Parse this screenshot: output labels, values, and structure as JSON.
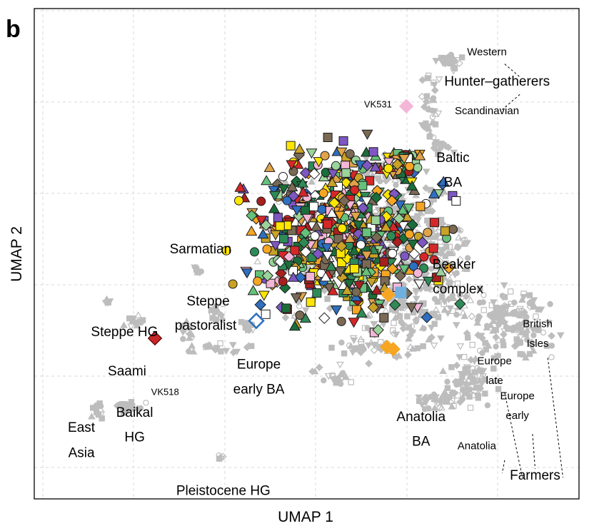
{
  "panel_letter": "b",
  "chart_data": {
    "type": "scatter",
    "title": "",
    "xlabel": "UMAP 1",
    "ylabel": "UMAP 2",
    "xlim": [
      0,
      100
    ],
    "ylim": [
      0,
      100
    ],
    "grid": true,
    "legend": "none",
    "background_color": "#bdbdbd",
    "highlight_colors": [
      "#2e8b57",
      "#1b6e3a",
      "#66c27a",
      "#9bd39b",
      "#c9a227",
      "#d62728",
      "#a81f1f",
      "#2e6fbf",
      "#7e57c2",
      "#7a6a55",
      "#ffe600",
      "#e0a34a",
      "#f6a623",
      "#f4b6d6",
      "#ffffff"
    ],
    "background_clusters": [
      {
        "x": 78.2,
        "y": 94.0,
        "rx": 2.0,
        "ry": 1.6,
        "n": 30
      },
      {
        "x": 74.4,
        "y": 83.0,
        "rx": 1.4,
        "ry": 6.0,
        "n": 35
      },
      {
        "x": 76.0,
        "y": 74.0,
        "rx": 1.8,
        "ry": 1.8,
        "n": 16
      },
      {
        "x": 64.5,
        "y": 69.5,
        "rx": 4.2,
        "ry": 2.2,
        "n": 45
      },
      {
        "x": 68.0,
        "y": 55.0,
        "rx": 7.0,
        "ry": 10.0,
        "n": 240
      },
      {
        "x": 72.0,
        "y": 38.0,
        "rx": 8.0,
        "ry": 7.0,
        "n": 160
      },
      {
        "x": 78.0,
        "y": 50.0,
        "rx": 4.0,
        "ry": 6.0,
        "n": 55
      },
      {
        "x": 90.0,
        "y": 34.0,
        "rx": 7.0,
        "ry": 6.0,
        "n": 150
      },
      {
        "x": 82.5,
        "y": 21.0,
        "rx": 4.0,
        "ry": 4.5,
        "n": 70
      },
      {
        "x": 78.0,
        "y": 16.5,
        "rx": 5.0,
        "ry": 2.0,
        "n": 45
      },
      {
        "x": 62.5,
        "y": 29.0,
        "rx": 6.0,
        "ry": 3.0,
        "n": 40
      },
      {
        "x": 56.0,
        "y": 22.0,
        "rx": 3.0,
        "ry": 2.0,
        "n": 20
      },
      {
        "x": 32.0,
        "y": 36.0,
        "rx": 2.0,
        "ry": 2.0,
        "n": 15
      },
      {
        "x": 28.5,
        "y": 46.0,
        "rx": 1.0,
        "ry": 1.0,
        "n": 8
      },
      {
        "x": 26.0,
        "y": 31.5,
        "rx": 1.0,
        "ry": 1.8,
        "n": 10
      },
      {
        "x": 38.0,
        "y": 33.0,
        "rx": 1.5,
        "ry": 1.5,
        "n": 10
      },
      {
        "x": 32.0,
        "y": 28.0,
        "rx": 6.0,
        "ry": 1.2,
        "n": 20
      },
      {
        "x": 16.5,
        "y": 34.5,
        "rx": 2.0,
        "ry": 1.0,
        "n": 12
      },
      {
        "x": 11.0,
        "y": 39.0,
        "rx": 1.0,
        "ry": 0.8,
        "n": 6
      },
      {
        "x": 14.5,
        "y": 14.5,
        "rx": 2.5,
        "ry": 1.0,
        "n": 22
      },
      {
        "x": 8.5,
        "y": 14.0,
        "rx": 1.2,
        "ry": 1.8,
        "n": 14
      },
      {
        "x": 33.0,
        "y": 3.0,
        "rx": 0.6,
        "ry": 0.5,
        "n": 5
      },
      {
        "x": 50.0,
        "y": 52.0,
        "rx": 6.0,
        "ry": 14.0,
        "n": 60
      }
    ],
    "highlight_clusters": [
      {
        "x": 57.0,
        "y": 55.0,
        "rx": 16.0,
        "ry": 17.0,
        "n": 640
      },
      {
        "x": 68.0,
        "y": 71.0,
        "rx": 3.5,
        "ry": 2.2,
        "n": 50
      }
    ],
    "special_points": [
      {
        "label": "VK531",
        "x": 69.6,
        "y": 83.8,
        "color": "#f4b6d6",
        "shape": "diamond"
      },
      {
        "label": "VK518",
        "x": 20.0,
        "y": 30.5,
        "color": "#c62828",
        "shape": "diamond"
      },
      {
        "label": "",
        "x": 66.0,
        "y": 40.5,
        "color": "#f6a623",
        "shape": "diamond"
      },
      {
        "label": "",
        "x": 65.8,
        "y": 28.5,
        "color": "#f6a623",
        "shape": "diamond"
      },
      {
        "label": "",
        "x": 67.0,
        "y": 28.0,
        "color": "#f6a623",
        "shape": "diamond"
      },
      {
        "label": "",
        "x": 68.5,
        "y": 41.0,
        "color": "#6fb0e0",
        "shape": "square"
      },
      {
        "label": "",
        "x": 40.0,
        "y": 34.5,
        "color": "#2e6fbf",
        "shape": "diamond-open"
      }
    ],
    "annotations": [
      {
        "text": "Western",
        "x": 85.5,
        "y": 95.5,
        "size": "s"
      },
      {
        "text": "Hunter–gatherers",
        "x": 87.5,
        "y": 88.5,
        "size": "l"
      },
      {
        "text": "Scandinavian",
        "x": 85.5,
        "y": 82.0,
        "size": "s"
      },
      {
        "text": "VK531",
        "x": 64.0,
        "y": 83.5,
        "size": "xs"
      },
      {
        "text": "Baltic",
        "x": 78.8,
        "y": 71.0,
        "size": "l"
      },
      {
        "text": "BA",
        "x": 78.8,
        "y": 65.3,
        "size": "l"
      },
      {
        "text": "Sarmatian",
        "x": 29.0,
        "y": 50.0,
        "size": "l"
      },
      {
        "text": "Beaker",
        "x": 79.0,
        "y": 46.5,
        "size": "l"
      },
      {
        "text": "complex",
        "x": 79.8,
        "y": 40.8,
        "size": "l"
      },
      {
        "text": "Steppe",
        "x": 30.5,
        "y": 38.0,
        "size": "l"
      },
      {
        "text": "pastoralist",
        "x": 30.0,
        "y": 32.5,
        "size": "l"
      },
      {
        "text": "Steppe HG",
        "x": 14.0,
        "y": 31.0,
        "size": "l"
      },
      {
        "text": "Saami",
        "x": 14.5,
        "y": 22.0,
        "size": "l"
      },
      {
        "text": "VK518",
        "x": 22.0,
        "y": 17.5,
        "size": "xs"
      },
      {
        "text": "Europe",
        "x": 40.5,
        "y": 23.5,
        "size": "l"
      },
      {
        "text": "early BA",
        "x": 40.5,
        "y": 17.8,
        "size": "l"
      },
      {
        "text": "British",
        "x": 95.5,
        "y": 33.0,
        "size": "s"
      },
      {
        "text": "Isles",
        "x": 95.5,
        "y": 28.5,
        "size": "s"
      },
      {
        "text": "Europe",
        "x": 87.0,
        "y": 24.5,
        "size": "s"
      },
      {
        "text": "late",
        "x": 87.0,
        "y": 20.0,
        "size": "s"
      },
      {
        "text": "Anatolia",
        "x": 72.5,
        "y": 11.5,
        "size": "l"
      },
      {
        "text": "BA",
        "x": 72.5,
        "y": 5.8,
        "size": "l"
      },
      {
        "text": "Europe",
        "x": 91.5,
        "y": 16.5,
        "size": "s"
      },
      {
        "text": "early",
        "x": 91.5,
        "y": 12.0,
        "size": "s"
      },
      {
        "text": "East",
        "x": 5.5,
        "y": 9.0,
        "size": "l"
      },
      {
        "text": "Asia",
        "x": 5.5,
        "y": 3.2,
        "size": "l"
      },
      {
        "text": "Baikal",
        "x": 16.0,
        "y": 12.5,
        "size": "l"
      },
      {
        "text": "HG",
        "x": 16.0,
        "y": 6.8,
        "size": "l"
      },
      {
        "text": "Anatolia",
        "x": 83.5,
        "y": 5.0,
        "size": "s"
      },
      {
        "text": "Farmers",
        "x": 95.0,
        "y": -2.0,
        "size": "l"
      },
      {
        "text": "Pleistocene HG",
        "x": 33.5,
        "y": -5.5,
        "size": "l"
      }
    ],
    "leader_lines": [
      [
        [
          89.0,
          93.5
        ],
        [
          92.0,
          90.5
        ]
      ],
      [
        [
          92.0,
          86.5
        ],
        [
          88.5,
          83.0
        ]
      ],
      [
        [
          89.0,
          18.0
        ],
        [
          92.5,
          -1.5
        ]
      ],
      [
        [
          94.5,
          8.5
        ],
        [
          95.0,
          0.5
        ]
      ],
      [
        [
          97.5,
          26.0
        ],
        [
          100.5,
          -1.5
        ]
      ],
      [
        [
          89.0,
          2.5
        ],
        [
          88.5,
          -0.5
        ]
      ]
    ]
  }
}
